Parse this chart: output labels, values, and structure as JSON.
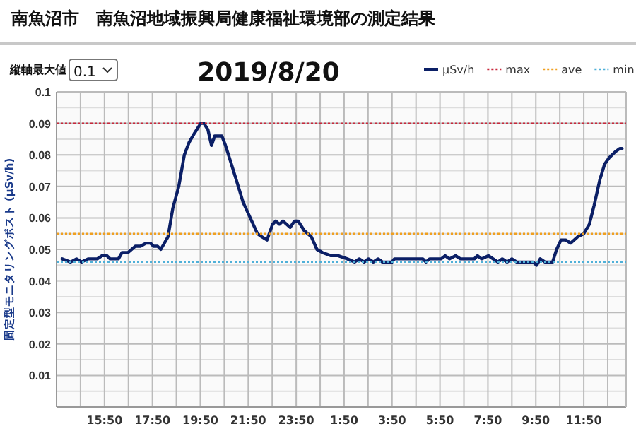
{
  "chart_data": {
    "type": "line",
    "title": "2019/8/20",
    "subtitle": "南魚沼市　南魚沼地域振興局健康福祉環境部の測定結果",
    "ylabel": "固定型モニタリングポスト (μSv/h)",
    "annotations": [
      "縦軸最大値",
      "0.1"
    ],
    "xlim": [
      "2019-08-19T13:50",
      "2019-08-20T13:36"
    ],
    "ylim": [
      0,
      0.1
    ],
    "xticks": [
      {
        "value": "2019-08-19T14:50",
        "label": null
      },
      {
        "value": "2019-08-19T15:50",
        "label": "15:50"
      },
      {
        "value": "2019-08-19T16:50",
        "label": null
      },
      {
        "value": "2019-08-19T17:50",
        "label": "17:50"
      },
      {
        "value": "2019-08-19T18:50",
        "label": null
      },
      {
        "value": "2019-08-19T19:50",
        "label": "19:50"
      },
      {
        "value": "2019-08-19T20:50",
        "label": null
      },
      {
        "value": "2019-08-19T21:50",
        "label": "21:50"
      },
      {
        "value": "2019-08-19T22:50",
        "label": null
      },
      {
        "value": "2019-08-19T23:50",
        "label": "23:50"
      },
      {
        "value": "2019-08-20T00:50",
        "label": null
      },
      {
        "value": "2019-08-20T01:50",
        "label": "1:50"
      },
      {
        "value": "2019-08-20T02:50",
        "label": null
      },
      {
        "value": "2019-08-20T03:50",
        "label": "3:50"
      },
      {
        "value": "2019-08-20T04:50",
        "label": null
      },
      {
        "value": "2019-08-20T05:50",
        "label": "5:50"
      },
      {
        "value": "2019-08-20T06:50",
        "label": null
      },
      {
        "value": "2019-08-20T07:50",
        "label": "7:50"
      },
      {
        "value": "2019-08-20T08:50",
        "label": null
      },
      {
        "value": "2019-08-20T09:50",
        "label": "9:50"
      },
      {
        "value": "2019-08-20T10:50",
        "label": null
      },
      {
        "value": "2019-08-20T11:50",
        "label": "11:50"
      },
      {
        "value": "2019-08-20T12:50",
        "label": null
      }
    ],
    "yticks": [
      {
        "value": 0.005,
        "label": null
      },
      0.01,
      {
        "value": 0.015,
        "label": null
      },
      0.02,
      {
        "value": 0.025,
        "label": null
      },
      0.03,
      {
        "value": 0.035,
        "label": null
      },
      0.04,
      {
        "value": 0.045,
        "label": null
      },
      0.05,
      {
        "value": 0.055,
        "label": null
      },
      0.06,
      {
        "value": 0.065,
        "label": null
      },
      0.07,
      {
        "value": 0.075,
        "label": null
      },
      0.08,
      {
        "value": 0.085,
        "label": null
      },
      0.09,
      {
        "value": 0.095,
        "label": null
      },
      0.1
    ],
    "grid": true,
    "legend": "top right",
    "marker": "none",
    "series": [
      {
        "name": "μSv/h",
        "color": "#0b1f66",
        "line_style": "solid",
        "x": [
          "2019-08-19T14:04",
          "2019-08-19T14:25",
          "2019-08-19T14:40",
          "2019-08-19T14:53",
          "2019-08-19T15:09",
          "2019-08-19T15:32",
          "2019-08-19T15:44",
          "2019-08-19T15:56",
          "2019-08-19T16:04",
          "2019-08-19T16:25",
          "2019-08-19T16:34",
          "2019-08-19T16:49",
          "2019-08-19T17:07",
          "2019-08-19T17:20",
          "2019-08-19T17:34",
          "2019-08-19T17:45",
          "2019-08-19T17:53",
          "2019-08-19T18:03",
          "2019-08-19T18:11",
          "2019-08-19T18:29",
          "2019-08-19T18:41",
          "2019-08-19T18:56",
          "2019-08-19T19:10",
          "2019-08-19T19:22",
          "2019-08-19T19:36",
          "2019-08-19T19:51",
          "2019-08-19T19:59",
          "2019-08-19T20:09",
          "2019-08-19T20:18",
          "2019-08-19T20:26",
          "2019-08-19T20:44",
          "2019-08-19T20:53",
          "2019-08-19T21:08",
          "2019-08-19T21:25",
          "2019-08-19T21:37",
          "2019-08-19T21:55",
          "2019-08-19T22:13",
          "2019-08-19T22:24",
          "2019-08-19T22:37",
          "2019-08-19T22:51",
          "2019-08-19T22:59",
          "2019-08-19T23:08",
          "2019-08-19T23:17",
          "2019-08-19T23:35",
          "2019-08-19T23:46",
          "2019-08-19T23:55",
          "2019-08-20T00:10",
          "2019-08-20T00:28",
          "2019-08-20T00:42",
          "2019-08-20T00:56",
          "2019-08-20T01:17",
          "2019-08-20T01:35",
          "2019-08-20T01:58",
          "2019-08-20T02:16",
          "2019-08-20T02:28",
          "2019-08-20T02:40",
          "2019-08-20T02:51",
          "2019-08-20T03:03",
          "2019-08-20T03:15",
          "2019-08-20T03:26",
          "2019-08-20T03:50",
          "2019-08-20T03:56",
          "2019-08-20T05:07",
          "2019-08-20T05:15",
          "2019-08-20T05:24",
          "2019-08-20T05:53",
          "2019-08-20T06:03",
          "2019-08-20T06:14",
          "2019-08-20T06:29",
          "2019-08-20T06:41",
          "2019-08-20T07:16",
          "2019-08-20T07:24",
          "2019-08-20T07:34",
          "2019-08-20T07:51",
          "2019-08-20T08:03",
          "2019-08-20T08:15",
          "2019-08-20T08:26",
          "2019-08-20T08:38",
          "2019-08-20T08:50",
          "2019-08-20T09:02",
          "2019-08-20T09:43",
          "2019-08-20T09:52",
          "2019-08-20T10:01",
          "2019-08-20T10:13",
          "2019-08-20T10:32",
          "2019-08-20T10:42",
          "2019-08-20T10:53",
          "2019-08-20T11:05",
          "2019-08-20T11:17",
          "2019-08-20T11:35",
          "2019-08-20T11:50",
          "2019-08-20T12:04",
          "2019-08-20T12:16",
          "2019-08-20T12:30",
          "2019-08-20T12:42",
          "2019-08-20T12:53",
          "2019-08-20T13:09",
          "2019-08-20T13:20",
          "2019-08-20T13:26"
        ],
        "values": [
          0.047,
          0.046,
          0.047,
          0.046,
          0.047,
          0.047,
          0.048,
          0.048,
          0.047,
          0.047,
          0.049,
          0.049,
          0.051,
          0.051,
          0.052,
          0.052,
          0.051,
          0.051,
          0.05,
          0.054,
          0.063,
          0.07,
          0.08,
          0.084,
          0.087,
          0.09,
          0.09,
          0.088,
          0.083,
          0.086,
          0.086,
          0.083,
          0.077,
          0.07,
          0.065,
          0.06,
          0.055,
          0.054,
          0.053,
          0.058,
          0.059,
          0.058,
          0.059,
          0.057,
          0.059,
          0.059,
          0.056,
          0.054,
          0.05,
          0.049,
          0.048,
          0.048,
          0.047,
          0.046,
          0.047,
          0.046,
          0.047,
          0.046,
          0.047,
          0.046,
          0.046,
          0.047,
          0.047,
          0.046,
          0.047,
          0.047,
          0.048,
          0.047,
          0.048,
          0.047,
          0.047,
          0.048,
          0.047,
          0.048,
          0.047,
          0.046,
          0.047,
          0.046,
          0.047,
          0.046,
          0.046,
          0.045,
          0.047,
          0.046,
          0.046,
          0.05,
          0.053,
          0.053,
          0.052,
          0.054,
          0.055,
          0.058,
          0.064,
          0.072,
          0.077,
          0.079,
          0.081,
          0.082,
          0.082
        ]
      },
      {
        "name": "max",
        "color": "#c8283c",
        "line_style": "dotted",
        "x": [
          "2019-08-19T13:50",
          "2019-08-20T13:36"
        ],
        "values": [
          0.09,
          0.09
        ]
      },
      {
        "name": "ave",
        "color": "#f0a020",
        "line_style": "dotted",
        "x": [
          "2019-08-19T13:50",
          "2019-08-20T13:36"
        ],
        "values": [
          0.055,
          0.055
        ]
      },
      {
        "name": "min",
        "color": "#4fb0d8",
        "line_style": "dotted",
        "x": [
          "2019-08-19T13:50",
          "2019-08-20T13:36"
        ],
        "values": [
          0.046,
          0.046
        ]
      }
    ]
  }
}
